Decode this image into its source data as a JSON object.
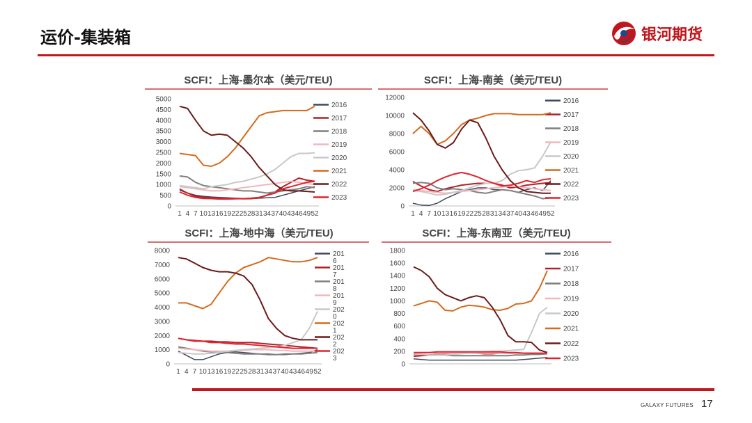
{
  "header": {
    "title": "运价-集装箱"
  },
  "logo": {
    "text": "银河期货"
  },
  "footer": {
    "brand": "GALAXY FUTURES",
    "page_number": "17"
  },
  "colors": {
    "accent": "#c0161c"
  },
  "chart_data": [
    {
      "type": "line",
      "title": "SCFI：上海-墨尔本（美元/TEU)",
      "ylim": [
        0,
        5000
      ],
      "yticks": [
        0,
        500,
        1000,
        1500,
        2000,
        2500,
        3000,
        3500,
        4000,
        4500,
        5000
      ],
      "xticks": [
        "1",
        "4",
        "7",
        "10",
        "13",
        "16",
        "19",
        "22",
        "25",
        "28",
        "31",
        "34",
        "37",
        "40",
        "43",
        "46",
        "49",
        "52"
      ],
      "legend_position": "right",
      "series": [
        {
          "name": "2016",
          "color": "#3d4a5c",
          "width": 1.5,
          "values": [
            800,
            600,
            500,
            450,
            420,
            400,
            380,
            360,
            350,
            340,
            360,
            380,
            400,
            500,
            600,
            700,
            800,
            900
          ]
        },
        {
          "name": "2017",
          "color": "#b22028",
          "width": 2,
          "values": [
            750,
            600,
            450,
            400,
            380,
            350,
            360,
            350,
            330,
            340,
            380,
            500,
            650,
            900,
            1100,
            1300,
            1200,
            1150
          ]
        },
        {
          "name": "2018",
          "color": "#7f7f7f",
          "width": 2,
          "values": [
            1400,
            1350,
            1100,
            950,
            900,
            850,
            800,
            750,
            700,
            700,
            650,
            600,
            650,
            700,
            750,
            800,
            900,
            850
          ]
        },
        {
          "name": "2019",
          "color": "#f4b6bd",
          "width": 2,
          "values": [
            900,
            850,
            800,
            750,
            700,
            700,
            750,
            800,
            850,
            900,
            950,
            1000,
            1050,
            1100,
            1150,
            1100,
            1050,
            1000
          ]
        },
        {
          "name": "2020",
          "color": "#c8c8c8",
          "width": 2,
          "values": [
            950,
            900,
            850,
            800,
            900,
            950,
            1000,
            1100,
            1150,
            1250,
            1350,
            1500,
            1700,
            2000,
            2300,
            2450,
            2450,
            2480
          ]
        },
        {
          "name": "2021",
          "color": "#d36b1e",
          "width": 2,
          "values": [
            2450,
            2400,
            2350,
            1900,
            1850,
            2000,
            2300,
            2700,
            3200,
            3700,
            4200,
            4350,
            4400,
            4450,
            4450,
            4450,
            4450,
            4650
          ]
        },
        {
          "name": "2022",
          "color": "#6b1a1a",
          "width": 2,
          "values": [
            4650,
            4550,
            4000,
            3500,
            3300,
            3350,
            3300,
            3000,
            2700,
            2300,
            1800,
            1400,
            1000,
            750,
            700,
            700,
            680,
            650
          ]
        },
        {
          "name": "2023",
          "color": "#e0232d",
          "width": 2,
          "values": [
            650,
            500,
            400,
            350,
            340,
            320,
            320,
            330,
            340,
            360,
            400,
            500,
            600,
            800,
            900,
            1000,
            1100,
            1150
          ]
        }
      ]
    },
    {
      "type": "line",
      "title": "SCFI：上海-南美（美元/TEU)",
      "ylim": [
        0,
        12000
      ],
      "yticks": [
        0,
        2000,
        4000,
        6000,
        8000,
        10000,
        12000
      ],
      "xticks": [
        "1",
        "4",
        "7",
        "10",
        "13",
        "16",
        "19",
        "22",
        "25",
        "28",
        "31",
        "34",
        "37",
        "40",
        "43",
        "46",
        "49",
        "52"
      ],
      "legend_position": "right",
      "series": [
        {
          "name": "2016",
          "color": "#3d4a5c",
          "width": 1.5,
          "values": [
            300,
            100,
            50,
            300,
            800,
            1200,
            1600,
            1800,
            2000,
            2000,
            1800,
            1800,
            1700,
            1500,
            1800,
            2000,
            1700,
            2800
          ]
        },
        {
          "name": "2017",
          "color": "#b22028",
          "width": 2,
          "values": [
            2700,
            2200,
            1800,
            1600,
            1900,
            2100,
            2300,
            2400,
            2500,
            2500,
            2500,
            2300,
            2000,
            2100,
            2300,
            2400,
            2500,
            2600
          ]
        },
        {
          "name": "2018",
          "color": "#7f7f7f",
          "width": 2,
          "values": [
            2500,
            2600,
            2500,
            2000,
            1800,
            1900,
            1800,
            1700,
            1500,
            1400,
            1600,
            1800,
            1700,
            1500,
            1300,
            1100,
            800,
            900
          ]
        },
        {
          "name": "2019",
          "color": "#f4b6bd",
          "width": 2,
          "values": [
            1800,
            1700,
            1600,
            1500,
            1400,
            1500,
            1600,
            1700,
            1800,
            1900,
            2000,
            2100,
            2200,
            2100,
            2000,
            1900,
            1800,
            1700
          ]
        },
        {
          "name": "2020",
          "color": "#c8c8c8",
          "width": 2,
          "values": [
            1700,
            1600,
            1400,
            1200,
            1300,
            1500,
            1700,
            2000,
            2300,
            2500,
            2500,
            2800,
            3500,
            3900,
            4000,
            4200,
            5500,
            7100
          ]
        },
        {
          "name": "2021",
          "color": "#d36b1e",
          "width": 2,
          "values": [
            8000,
            8800,
            8000,
            6800,
            7200,
            8000,
            9000,
            9500,
            9700,
            10000,
            10200,
            10200,
            10200,
            10100,
            10100,
            10100,
            10100,
            10300
          ]
        },
        {
          "name": "2022",
          "color": "#6b1a1a",
          "width": 2,
          "values": [
            10300,
            9500,
            8300,
            6800,
            6400,
            7000,
            8500,
            9500,
            9200,
            7500,
            5500,
            4000,
            2800,
            2000,
            1600,
            1500,
            1400,
            1400
          ]
        },
        {
          "name": "2023",
          "color": "#e0232d",
          "width": 2,
          "values": [
            1600,
            1900,
            2300,
            2800,
            3200,
            3500,
            3700,
            3500,
            3200,
            2800,
            2500,
            2200,
            2300,
            2500,
            2800,
            2600,
            2900,
            3000
          ]
        }
      ]
    },
    {
      "type": "line",
      "title": "SCFI：上海-地中海（美元/TEU)",
      "ylim": [
        0,
        8000
      ],
      "yticks": [
        0,
        1000,
        2000,
        3000,
        4000,
        5000,
        6000,
        7000,
        8000
      ],
      "xticks": [
        "1",
        "4",
        "7",
        "10",
        "13",
        "16",
        "19",
        "22",
        "25",
        "28",
        "31",
        "34",
        "37",
        "40",
        "43",
        "46",
        "49",
        "52"
      ],
      "legend_position": "right",
      "series": [
        {
          "name": "2016",
          "color": "#3d4a5c",
          "width": 1.5,
          "values": [
            900,
            600,
            300,
            300,
            500,
            700,
            800,
            850,
            800,
            750,
            700,
            700,
            650,
            650,
            700,
            750,
            800,
            1000
          ]
        },
        {
          "name": "2017",
          "color": "#b22028",
          "width": 2,
          "values": [
            1800,
            1700,
            1650,
            1600,
            1600,
            1550,
            1550,
            1500,
            1500,
            1500,
            1450,
            1400,
            1350,
            1300,
            1250,
            1200,
            1150,
            1100
          ]
        },
        {
          "name": "2018",
          "color": "#7f7f7f",
          "width": 2,
          "values": [
            1200,
            1100,
            1000,
            900,
            850,
            800,
            800,
            750,
            700,
            700,
            700,
            650,
            650,
            700,
            700,
            700,
            750,
            800
          ]
        },
        {
          "name": "2019",
          "color": "#f4b6bd",
          "width": 2,
          "values": [
            1100,
            1050,
            1000,
            950,
            900,
            900,
            900,
            950,
            950,
            1000,
            1000,
            1000,
            950,
            950,
            900,
            900,
            900,
            900
          ]
        },
        {
          "name": "2020",
          "color": "#c8c8c8",
          "width": 2,
          "values": [
            800,
            750,
            700,
            700,
            750,
            800,
            900,
            950,
            1000,
            1050,
            1100,
            1150,
            1200,
            1300,
            1500,
            1700,
            2500,
            3700
          ]
        },
        {
          "name": "2021",
          "color": "#d36b1e",
          "width": 2,
          "values": [
            4300,
            4300,
            4100,
            3900,
            4200,
            5000,
            5800,
            6400,
            6800,
            7000,
            7200,
            7500,
            7400,
            7300,
            7200,
            7200,
            7300,
            7500
          ]
        },
        {
          "name": "2022",
          "color": "#6b1a1a",
          "width": 2,
          "values": [
            7500,
            7400,
            7100,
            6800,
            6600,
            6500,
            6500,
            6400,
            6200,
            5600,
            4500,
            3200,
            2500,
            2000,
            1800,
            1700,
            1700,
            1700
          ]
        },
        {
          "name": "2023",
          "color": "#e0232d",
          "width": 2,
          "values": [
            1800,
            1700,
            1600,
            1600,
            1500,
            1500,
            1450,
            1400,
            1400,
            1350,
            1300,
            1250,
            1200,
            1150,
            1100,
            1100,
            1100,
            1100
          ]
        }
      ]
    },
    {
      "type": "line",
      "title": "SCFI：上海-东南亚（美元/TEU)",
      "ylim": [
        0,
        1800
      ],
      "yticks": [
        0,
        200,
        400,
        600,
        800,
        1000,
        1200,
        1400,
        1600,
        1800
      ],
      "xticks": [
        "1",
        "4",
        "7",
        "10",
        "13",
        "16",
        "19",
        "22",
        "25",
        "28",
        "31",
        "34",
        "37",
        "40",
        "43",
        "46",
        "49",
        "52"
      ],
      "legend_position": "right",
      "series": [
        {
          "name": "2016",
          "color": "#3d4a5c",
          "width": 1.5,
          "values": [
            80,
            70,
            60,
            60,
            60,
            60,
            60,
            60,
            60,
            60,
            60,
            60,
            60,
            60,
            70,
            80,
            90,
            100
          ]
        },
        {
          "name": "2017",
          "color": "#b22028",
          "width": 2,
          "values": [
            120,
            130,
            140,
            150,
            160,
            170,
            170,
            170,
            170,
            160,
            160,
            170,
            170,
            170,
            170,
            170,
            160,
            160
          ]
        },
        {
          "name": "2018",
          "color": "#7f7f7f",
          "width": 2,
          "values": [
            150,
            150,
            140,
            140,
            140,
            130,
            130,
            130,
            130,
            130,
            130,
            130,
            130,
            140,
            140,
            150,
            150,
            160
          ]
        },
        {
          "name": "2019",
          "color": "#f4b6bd",
          "width": 2,
          "values": [
            180,
            180,
            180,
            170,
            170,
            170,
            170,
            170,
            170,
            170,
            170,
            170,
            170,
            170,
            170,
            170,
            170,
            170
          ]
        },
        {
          "name": "2020",
          "color": "#c8c8c8",
          "width": 2,
          "values": [
            160,
            150,
            140,
            140,
            140,
            150,
            160,
            170,
            180,
            190,
            200,
            200,
            210,
            220,
            230,
            500,
            800,
            900
          ]
        },
        {
          "name": "2021",
          "color": "#d36b1e",
          "width": 2,
          "values": [
            920,
            960,
            1000,
            980,
            850,
            840,
            900,
            930,
            920,
            900,
            860,
            850,
            880,
            950,
            960,
            1000,
            1200,
            1480
          ]
        },
        {
          "name": "2022",
          "color": "#6b1a1a",
          "width": 2,
          "values": [
            1540,
            1480,
            1380,
            1200,
            1100,
            1050,
            1000,
            1050,
            1080,
            1050,
            900,
            700,
            450,
            350,
            350,
            340,
            220,
            180
          ]
        },
        {
          "name": "2023",
          "color": "#e0232d",
          "width": 2,
          "values": [
            180,
            180,
            180,
            190,
            190,
            190,
            190,
            190,
            190,
            190,
            190,
            190,
            180,
            180,
            170,
            170,
            170,
            170
          ]
        }
      ]
    }
  ]
}
